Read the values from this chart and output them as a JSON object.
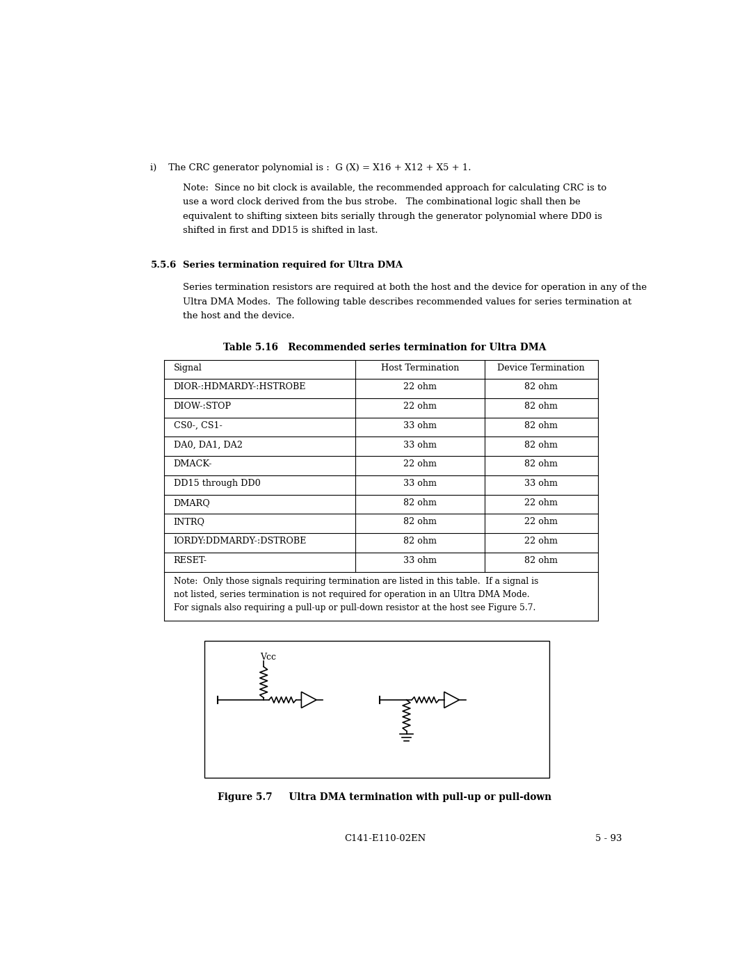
{
  "bg_color": "#ffffff",
  "text_color": "#000000",
  "page_width": 10.8,
  "page_height": 13.97,
  "crc_item": "i)    The CRC generator polynomial is :  G (X) = X16 + X12 + X5 + 1.",
  "crc_note_lines": [
    "Note:  Since no bit clock is available, the recommended approach for calculating CRC is to",
    "use a word clock derived from the bus strobe.   The combinational logic shall then be",
    "equivalent to shifting sixteen bits serially through the generator polynomial where DD0 is",
    "shifted in first and DD15 is shifted in last."
  ],
  "section_heading_num": "5.5.6",
  "section_heading_text": "Series termination required for Ultra DMA",
  "body_text_lines": [
    "Series termination resistors are required at both the host and the device for operation in any of the",
    "Ultra DMA Modes.  The following table describes recommended values for series termination at",
    "the host and the device."
  ],
  "table_title": "Table 5.16   Recommended series termination for Ultra DMA",
  "table_headers": [
    "Signal",
    "Host Termination",
    "Device Termination"
  ],
  "table_rows": [
    [
      "DIOR-:HDMARDY-:HSTROBE",
      "22 ohm",
      "82 ohm"
    ],
    [
      "DIOW-:STOP",
      "22 ohm",
      "82 ohm"
    ],
    [
      "CS0-, CS1-",
      "33 ohm",
      "82 ohm"
    ],
    [
      "DA0, DA1, DA2",
      "33 ohm",
      "82 ohm"
    ],
    [
      "DMACK-",
      "22 ohm",
      "82 ohm"
    ],
    [
      "DD15 through DD0",
      "33 ohm",
      "33 ohm"
    ],
    [
      "DMARQ",
      "82 ohm",
      "22 ohm"
    ],
    [
      "INTRQ",
      "82 ohm",
      "22 ohm"
    ],
    [
      "IORDY:DDMARDY-:DSTROBE",
      "82 ohm",
      "22 ohm"
    ],
    [
      "RESET-",
      "33 ohm",
      "82 ohm"
    ]
  ],
  "table_note_lines": [
    "Note:  Only those signals requiring termination are listed in this table.  If a signal is",
    "not listed, series termination is not required for operation in an Ultra DMA Mode.",
    "For signals also requiring a pull-up or pull-down resistor at the host see Figure 5.7."
  ],
  "figure_caption": "Figure 5.7     Ultra DMA termination with pull-up or pull-down",
  "footer_left": "C141-E110-02EN",
  "footer_right": "5 - 93"
}
